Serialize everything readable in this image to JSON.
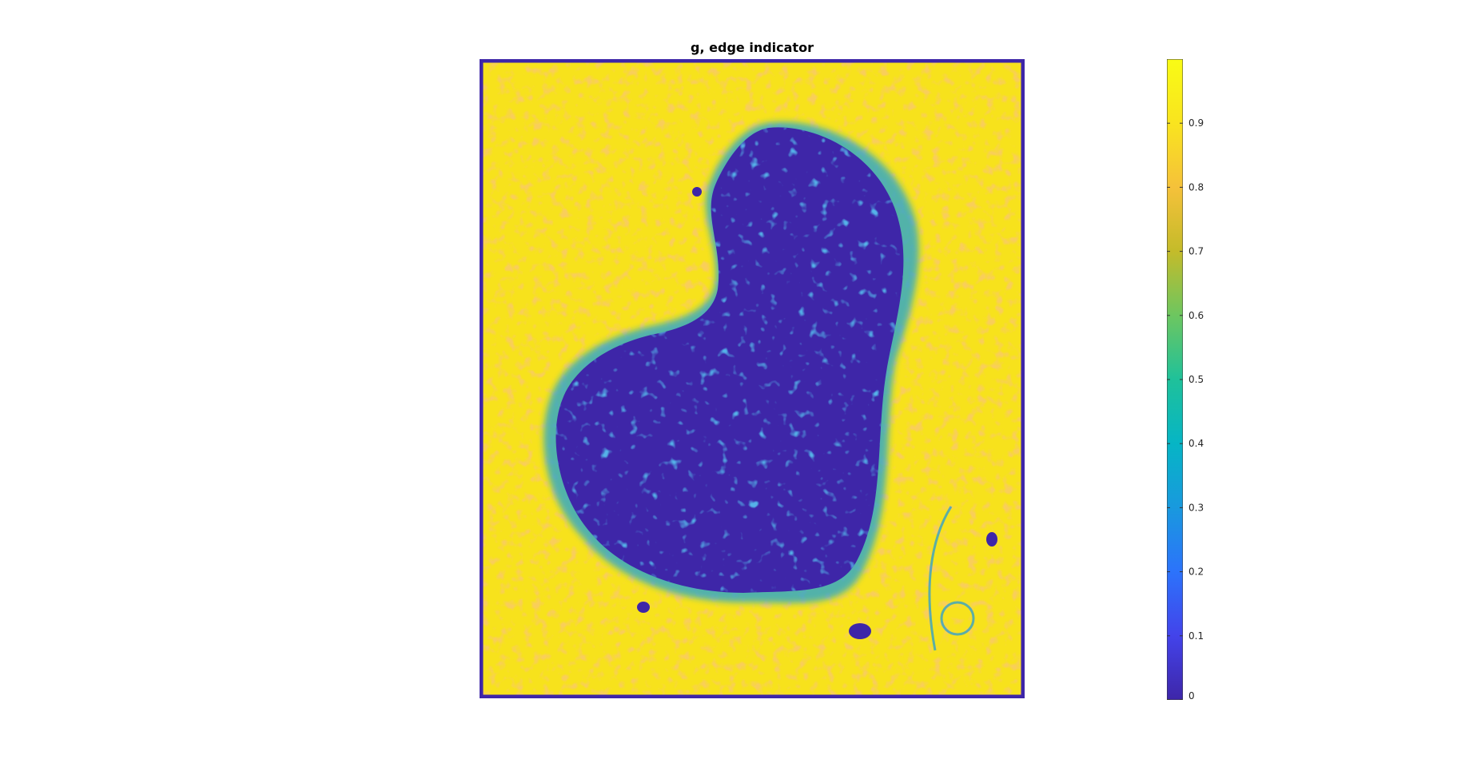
{
  "figure": {
    "title": "g,  edge indicator"
  },
  "colors": {
    "parula_stops": [
      "#3e26a8",
      "#4343ea",
      "#2c73fb",
      "#1999de",
      "#06b5c5",
      "#1fc19a",
      "#6dc660",
      "#c4bb2a",
      "#f5c13a",
      "#f9e41f",
      "#f9fb15"
    ],
    "frame": "#3e26a8"
  },
  "chart_data": {
    "type": "heatmap",
    "title": "g,  edge indicator",
    "colormap": "parula",
    "clim": [
      0,
      1
    ],
    "colorbar": {
      "ticks": [
        0,
        0.1,
        0.2,
        0.3,
        0.4,
        0.5,
        0.6,
        0.7,
        0.8,
        0.9
      ],
      "tick_labels": [
        "0",
        "0.1",
        "0.2",
        "0.3",
        "0.4",
        "0.5",
        "0.6",
        "0.7",
        "0.8",
        "0.9"
      ],
      "placement": "right"
    },
    "description_values": {
      "background_level": 0.95,
      "region_level": 0.05
    }
  }
}
